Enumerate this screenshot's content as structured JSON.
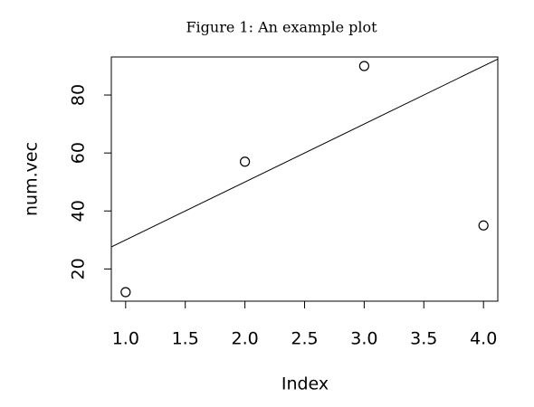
{
  "chart_data": {
    "type": "scatter",
    "title": "Figure 1: An example plot",
    "x_label": "Index",
    "y_label": "num.vec",
    "x": [
      1,
      2,
      3,
      4
    ],
    "values": [
      12,
      57,
      90,
      35
    ],
    "line": {
      "intercept": 10,
      "slope": 20
    },
    "xlim": [
      0.88,
      4.12
    ],
    "ylim": [
      8.88,
      93.12
    ],
    "xticks": [
      {
        "value": 1,
        "label": "1.0"
      },
      {
        "value": 1.5,
        "label": "1.5"
      },
      {
        "value": 2,
        "label": "2.0"
      },
      {
        "value": 2.5,
        "label": "2.5"
      },
      {
        "value": 3,
        "label": "3.0"
      },
      {
        "value": 3.5,
        "label": "3.5"
      },
      {
        "value": 4,
        "label": "4.0"
      }
    ],
    "yticks": [
      20,
      40,
      60,
      80
    ],
    "color": "#000000"
  }
}
